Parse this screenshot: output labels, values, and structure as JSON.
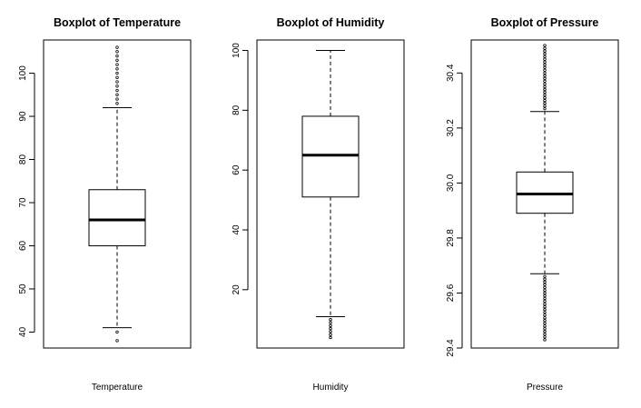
{
  "chart_data": [
    {
      "type": "boxplot",
      "title": "Boxplot of Temperature",
      "xlabel": "Temperature",
      "ylabel": "",
      "ylim": [
        36.3,
        107.7
      ],
      "yticks": [
        40,
        50,
        60,
        70,
        80,
        90,
        100
      ],
      "ytick_labels": [
        "40",
        "50",
        "60",
        "70",
        "80",
        "90",
        "100"
      ],
      "stats": {
        "whisker_low": 41,
        "q1": 60,
        "median": 66,
        "q3": 73,
        "whisker_high": 92
      },
      "outliers": [
        38,
        40,
        93,
        94,
        95,
        96,
        97,
        98,
        99,
        100,
        101,
        102,
        103,
        104,
        105,
        106
      ]
    },
    {
      "type": "boxplot",
      "title": "Boxplot of Humidity",
      "xlabel": "Humidity",
      "ylabel": "",
      "ylim": [
        0.5,
        103.5
      ],
      "yticks": [
        20,
        40,
        60,
        80,
        100
      ],
      "ytick_labels": [
        "20",
        "40",
        "60",
        "80",
        "100"
      ],
      "stats": {
        "whisker_low": 11,
        "q1": 51,
        "median": 65,
        "q3": 78,
        "whisker_high": 100
      },
      "outliers": [
        4,
        5,
        6,
        7,
        8,
        9,
        10
      ]
    },
    {
      "type": "boxplot",
      "title": "Boxplot of Pressure",
      "xlabel": "Pressure",
      "ylabel": "",
      "ylim": [
        29.4,
        30.52
      ],
      "yticks": [
        29.4,
        29.6,
        29.8,
        30.0,
        30.2,
        30.4
      ],
      "ytick_labels": [
        "29.4",
        "29.6",
        "29.8",
        "30.0",
        "30.2",
        "30.4"
      ],
      "stats": {
        "whisker_low": 29.67,
        "q1": 29.89,
        "median": 29.96,
        "q3": 30.04,
        "whisker_high": 30.26
      },
      "outliers": [
        29.43,
        29.44,
        29.45,
        29.46,
        29.47,
        29.48,
        29.49,
        29.5,
        29.51,
        29.52,
        29.53,
        29.54,
        29.55,
        29.56,
        29.57,
        29.58,
        29.59,
        29.6,
        29.61,
        29.62,
        29.63,
        29.64,
        29.65,
        29.66,
        30.27,
        30.28,
        30.29,
        30.3,
        30.31,
        30.32,
        30.33,
        30.34,
        30.35,
        30.36,
        30.37,
        30.38,
        30.39,
        30.4,
        30.41,
        30.42,
        30.43,
        30.44,
        30.45,
        30.46,
        30.47,
        30.48,
        30.49,
        30.5
      ]
    }
  ]
}
